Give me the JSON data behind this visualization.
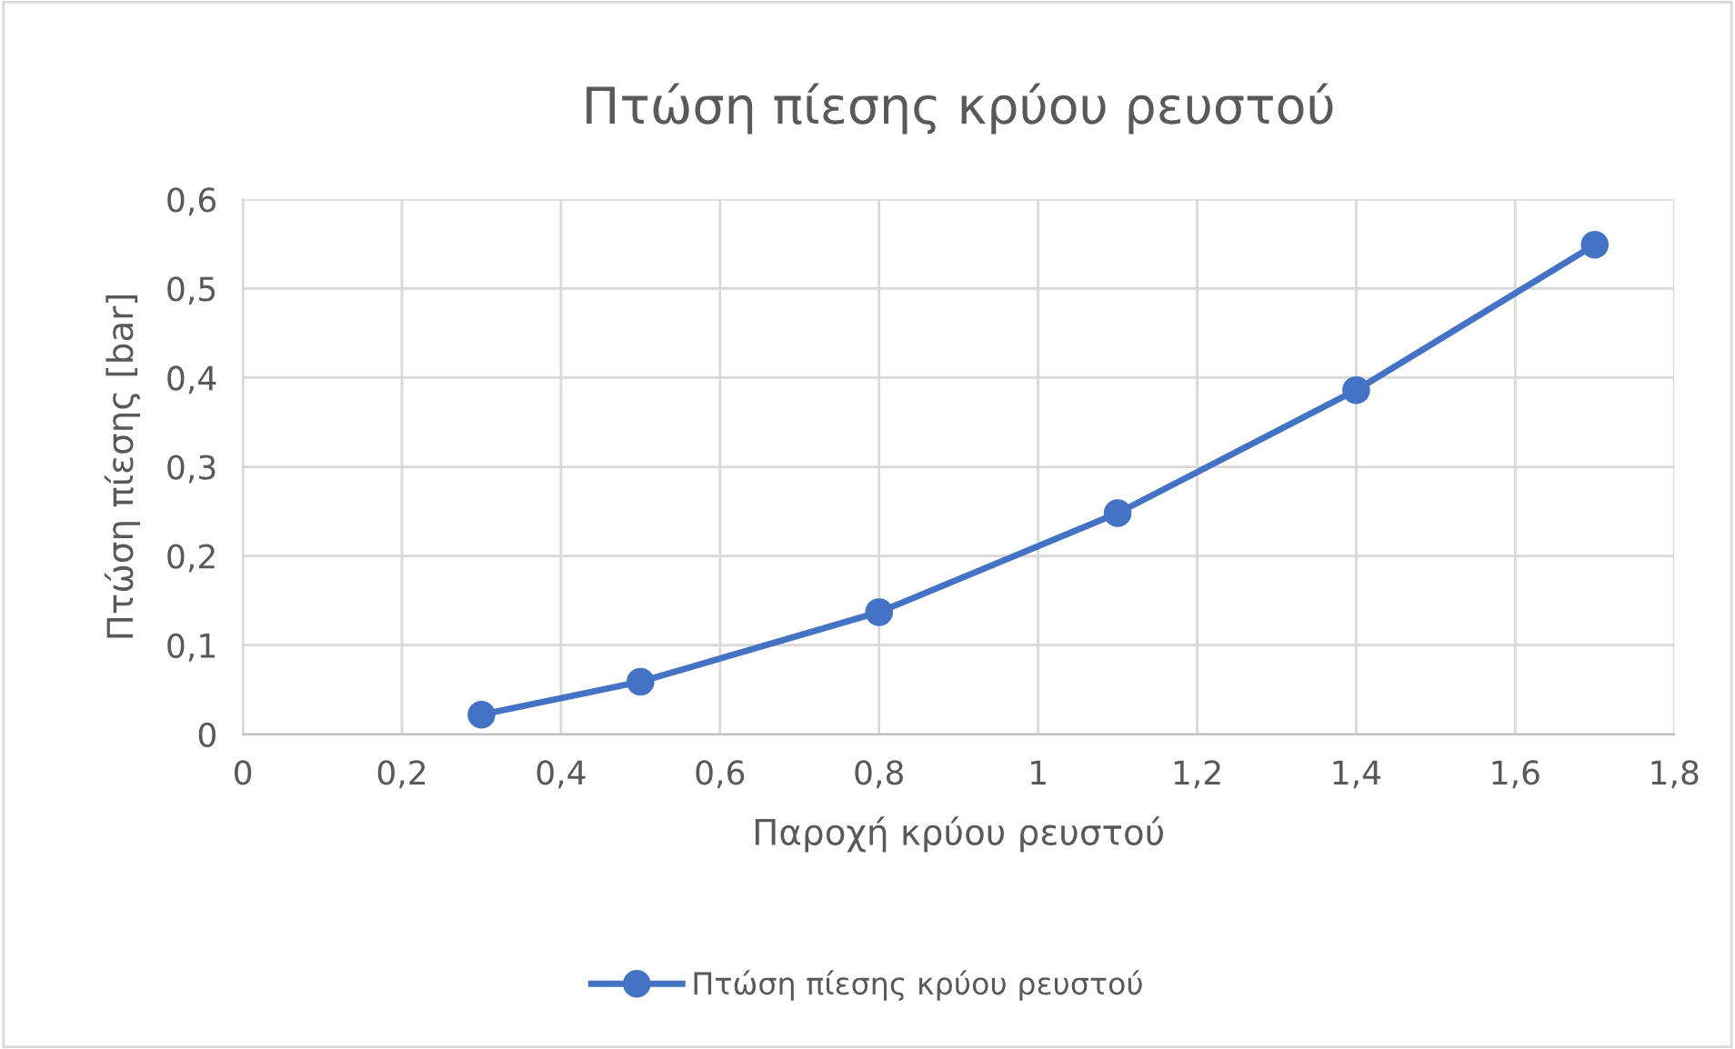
{
  "chart_data": {
    "type": "line",
    "title": "Πτώση πίεσης κρύου ρευστού",
    "xlabel": "Παροχή κρύου ρευστού",
    "ylabel": "Πτώση πίεσης [bar]",
    "x": [
      0.3,
      0.5,
      0.8,
      1.1,
      1.4,
      1.7
    ],
    "series": [
      {
        "name": "Πτώση πίεσης κρύου ρευστού",
        "color": "#4472c4",
        "values": [
          0.022,
          0.059,
          0.137,
          0.248,
          0.386,
          0.549
        ]
      }
    ],
    "xlim": [
      0,
      1.8
    ],
    "ylim": [
      0,
      0.6
    ],
    "xticks": [
      0,
      {
        "value": 0.2,
        "label": "0,2"
      },
      {
        "value": 0.4,
        "label": "0,4"
      },
      {
        "value": 0.6,
        "label": "0,6"
      },
      {
        "value": 0.8,
        "label": "0,8"
      },
      1,
      {
        "value": 1.2,
        "label": "1,2"
      },
      {
        "value": 1.4,
        "label": "1,4"
      },
      {
        "value": 1.6,
        "label": "1,6"
      },
      {
        "value": 1.8,
        "label": "1,8"
      }
    ],
    "yticks": [
      0,
      {
        "value": 0.1,
        "label": "0,1"
      },
      {
        "value": 0.2,
        "label": "0,2"
      },
      {
        "value": 0.3,
        "label": "0,3"
      },
      {
        "value": 0.4,
        "label": "0,4"
      },
      {
        "value": 0.5,
        "label": "0,5"
      },
      {
        "value": 0.6,
        "label": "0,6"
      }
    ],
    "grid": true,
    "legend": "bottom",
    "marker": "circle",
    "line_style": "solid"
  }
}
